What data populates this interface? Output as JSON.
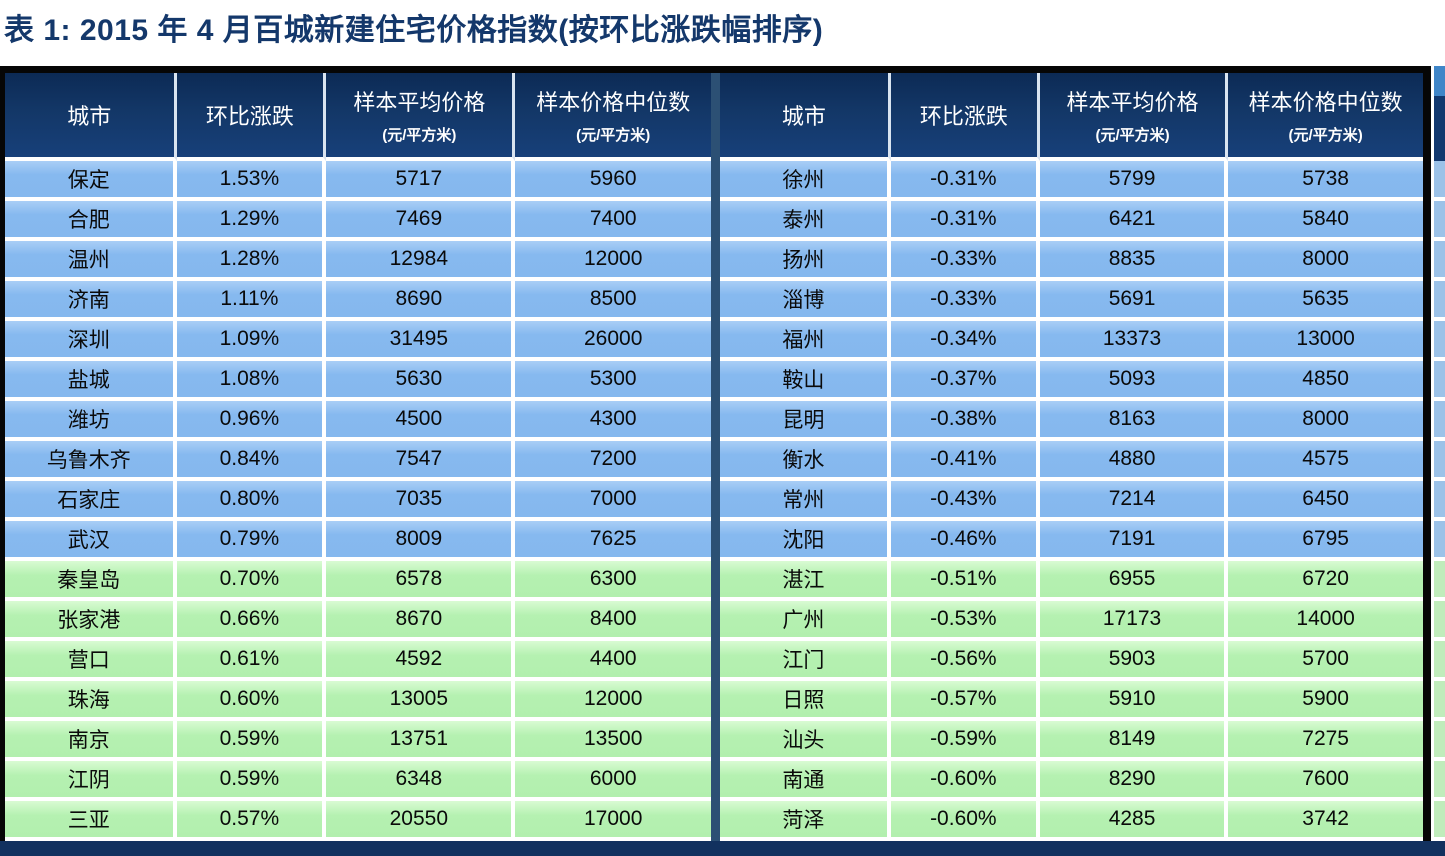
{
  "title": "表 1: 2015 年 4 月百城新建住宅价格指数(按环比涨跌幅排序)",
  "columns": {
    "city": "城市",
    "mom_change": "环比涨跌",
    "avg_price": "样本平均价格",
    "avg_price_unit": "(元/平方米)",
    "median_price": "样本价格中位数",
    "median_price_unit": "(元/平方米)"
  },
  "colors": {
    "title_text": "#14386b",
    "header_bg": "#133767",
    "row_blue": "#86b9ef",
    "row_green": "#b5f1b1",
    "divider": "#2c5074",
    "border": "#060606"
  },
  "blue_row_count": 10,
  "left_table": {
    "rows": [
      {
        "city": "保定",
        "change": "1.53%",
        "avg": "5717",
        "median": "5960"
      },
      {
        "city": "合肥",
        "change": "1.29%",
        "avg": "7469",
        "median": "7400"
      },
      {
        "city": "温州",
        "change": "1.28%",
        "avg": "12984",
        "median": "12000"
      },
      {
        "city": "济南",
        "change": "1.11%",
        "avg": "8690",
        "median": "8500"
      },
      {
        "city": "深圳",
        "change": "1.09%",
        "avg": "31495",
        "median": "26000"
      },
      {
        "city": "盐城",
        "change": "1.08%",
        "avg": "5630",
        "median": "5300"
      },
      {
        "city": "潍坊",
        "change": "0.96%",
        "avg": "4500",
        "median": "4300"
      },
      {
        "city": "乌鲁木齐",
        "change": "0.84%",
        "avg": "7547",
        "median": "7200"
      },
      {
        "city": "石家庄",
        "change": "0.80%",
        "avg": "7035",
        "median": "7000"
      },
      {
        "city": "武汉",
        "change": "0.79%",
        "avg": "8009",
        "median": "7625"
      },
      {
        "city": "秦皇岛",
        "change": "0.70%",
        "avg": "6578",
        "median": "6300"
      },
      {
        "city": "张家港",
        "change": "0.66%",
        "avg": "8670",
        "median": "8400"
      },
      {
        "city": "营口",
        "change": "0.61%",
        "avg": "4592",
        "median": "4400"
      },
      {
        "city": "珠海",
        "change": "0.60%",
        "avg": "13005",
        "median": "12000"
      },
      {
        "city": "南京",
        "change": "0.59%",
        "avg": "13751",
        "median": "13500"
      },
      {
        "city": "江阴",
        "change": "0.59%",
        "avg": "6348",
        "median": "6000"
      },
      {
        "city": "三亚",
        "change": "0.57%",
        "avg": "20550",
        "median": "17000"
      }
    ]
  },
  "right_table": {
    "rows": [
      {
        "city": "徐州",
        "change": "-0.31%",
        "avg": "5799",
        "median": "5738"
      },
      {
        "city": "泰州",
        "change": "-0.31%",
        "avg": "6421",
        "median": "5840"
      },
      {
        "city": "扬州",
        "change": "-0.33%",
        "avg": "8835",
        "median": "8000"
      },
      {
        "city": "淄博",
        "change": "-0.33%",
        "avg": "5691",
        "median": "5635"
      },
      {
        "city": "福州",
        "change": "-0.34%",
        "avg": "13373",
        "median": "13000"
      },
      {
        "city": "鞍山",
        "change": "-0.37%",
        "avg": "5093",
        "median": "4850"
      },
      {
        "city": "昆明",
        "change": "-0.38%",
        "avg": "8163",
        "median": "8000"
      },
      {
        "city": "衡水",
        "change": "-0.41%",
        "avg": "4880",
        "median": "4575"
      },
      {
        "city": "常州",
        "change": "-0.43%",
        "avg": "7214",
        "median": "6450"
      },
      {
        "city": "沈阳",
        "change": "-0.46%",
        "avg": "7191",
        "median": "6795"
      },
      {
        "city": "湛江",
        "change": "-0.51%",
        "avg": "6955",
        "median": "6720"
      },
      {
        "city": "广州",
        "change": "-0.53%",
        "avg": "17173",
        "median": "14000"
      },
      {
        "city": "江门",
        "change": "-0.56%",
        "avg": "5903",
        "median": "5700"
      },
      {
        "city": "日照",
        "change": "-0.57%",
        "avg": "5910",
        "median": "5900"
      },
      {
        "city": "汕头",
        "change": "-0.59%",
        "avg": "8149",
        "median": "7275"
      },
      {
        "city": "南通",
        "change": "-0.60%",
        "avg": "8290",
        "median": "7600"
      },
      {
        "city": "菏泽",
        "change": "-0.60%",
        "avg": "4285",
        "median": "3742"
      }
    ]
  }
}
